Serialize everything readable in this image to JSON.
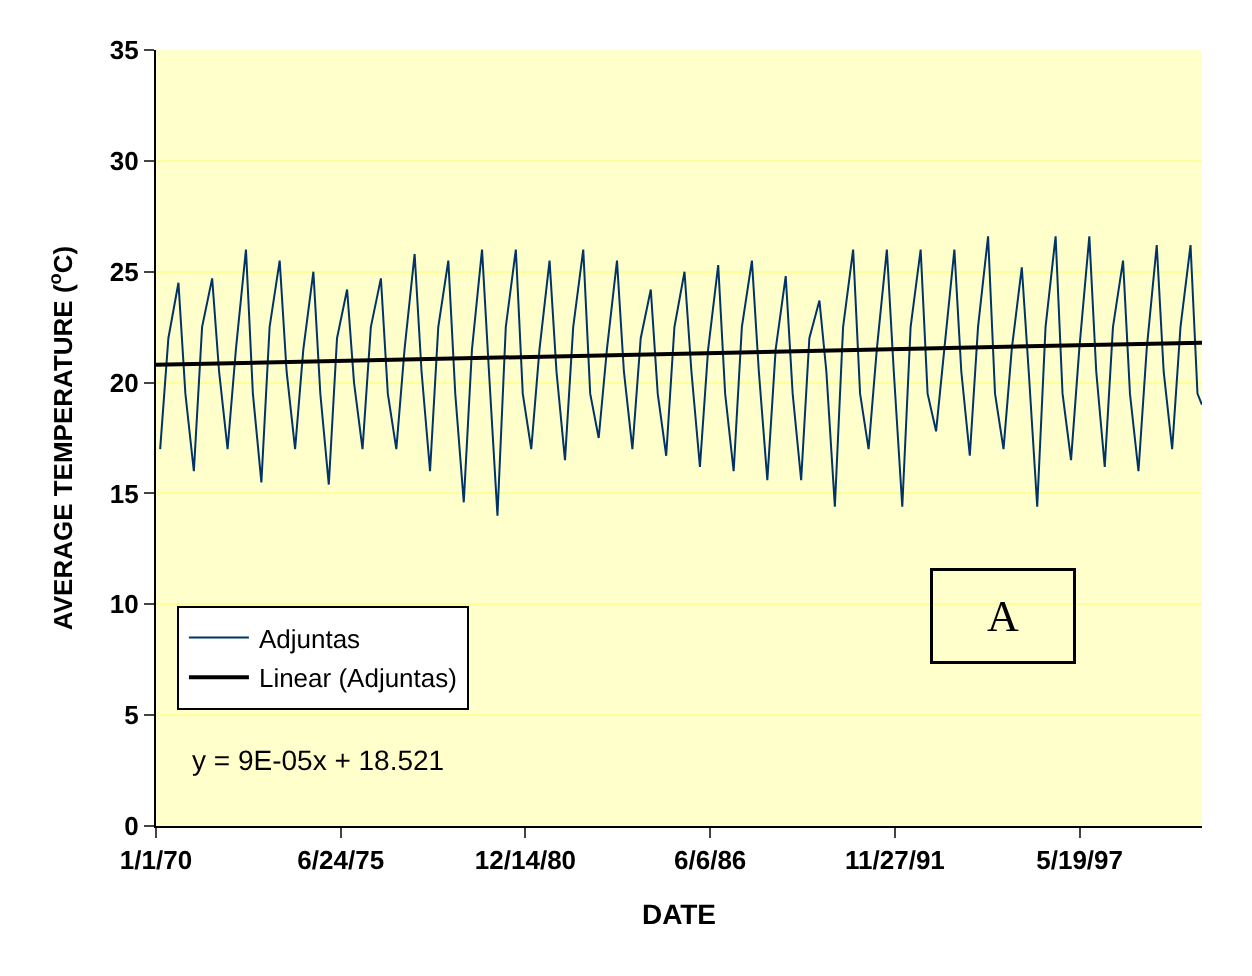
{
  "chart_data": {
    "type": "line",
    "xlabel": "DATE",
    "ylabel": "AVERAGE TEMPERATURE ($^{o}$C)",
    "xlim": [
      "1970-01-01",
      "2001-01-03"
    ],
    "xticks": [
      {
        "value": "1970-01-01",
        "label": "1/1/70"
      },
      {
        "value": "1975-06-24",
        "label": "6/24/75"
      },
      {
        "value": "1980-12-14",
        "label": "12/14/80"
      },
      {
        "value": "1986-06-06",
        "label": "6/6/86"
      },
      {
        "value": "1991-11-27",
        "label": "11/27/91"
      },
      {
        "value": "1997-05-19",
        "label": "5/19/97"
      }
    ],
    "ylim": [
      0,
      35
    ],
    "yticks": [
      0,
      5,
      10,
      15,
      20,
      25,
      30,
      35
    ],
    "grid": "y",
    "legend": "bottom left",
    "series": [
      {
        "name": "Adjuntas",
        "color": "#003366",
        "x": [
          "1970-02-15",
          "1970-05-15",
          "1970-09-01",
          "1970-11-15",
          "1971-02-15",
          "1971-05-15",
          "1971-09-01",
          "1971-11-15",
          "1972-02-15",
          "1972-05-15",
          "1972-09-01",
          "1972-11-15",
          "1973-02-15",
          "1973-05-15",
          "1973-09-01",
          "1973-11-15",
          "1974-02-15",
          "1974-05-15",
          "1974-09-01",
          "1974-11-15",
          "1975-02-15",
          "1975-05-15",
          "1975-09-01",
          "1975-11-15",
          "1976-02-15",
          "1976-05-15",
          "1976-09-01",
          "1976-11-15",
          "1977-02-15",
          "1977-05-15",
          "1977-09-01",
          "1977-11-15",
          "1978-02-15",
          "1978-05-15",
          "1978-09-01",
          "1978-11-15",
          "1979-02-15",
          "1979-05-15",
          "1979-09-01",
          "1979-11-15",
          "1980-02-15",
          "1980-05-15",
          "1980-09-01",
          "1980-11-15",
          "1981-02-15",
          "1981-05-15",
          "1981-09-01",
          "1981-11-15",
          "1982-02-15",
          "1982-05-15",
          "1982-09-01",
          "1982-11-15",
          "1983-02-15",
          "1983-05-15",
          "1983-09-01",
          "1983-11-15",
          "1984-02-15",
          "1984-05-15",
          "1984-09-01",
          "1984-11-15",
          "1985-02-15",
          "1985-05-15",
          "1985-09-01",
          "1985-11-15",
          "1986-02-15",
          "1986-05-15",
          "1986-09-01",
          "1986-11-15",
          "1987-02-15",
          "1987-05-15",
          "1987-09-01",
          "1987-11-15",
          "1988-02-15",
          "1988-05-15",
          "1988-09-01",
          "1988-11-15",
          "1989-02-15",
          "1989-05-15",
          "1989-09-01",
          "1989-11-15",
          "1990-02-15",
          "1990-05-15",
          "1990-09-01",
          "1990-11-15",
          "1991-02-15",
          "1991-05-15",
          "1991-09-01",
          "1991-11-15",
          "1992-02-15",
          "1992-05-15",
          "1992-09-01",
          "1992-11-15",
          "1993-02-15",
          "1993-05-15",
          "1993-09-01",
          "1993-11-15",
          "1994-02-15",
          "1994-05-15",
          "1994-09-01",
          "1994-11-15",
          "1995-02-15",
          "1995-05-15",
          "1995-09-01",
          "1995-11-15",
          "1996-02-15",
          "1996-05-15",
          "1996-09-01",
          "1996-11-15",
          "1997-02-15",
          "1997-05-15",
          "1997-09-01",
          "1997-11-15",
          "1998-02-15",
          "1998-05-15",
          "1998-09-01",
          "1998-11-15",
          "1999-02-15",
          "1999-05-15",
          "1999-09-01",
          "1999-11-15",
          "2000-02-15",
          "2000-05-15",
          "2000-09-01",
          "2000-11-15",
          "2001-01-02"
        ],
        "values": [
          17.0,
          22.0,
          24.5,
          19.5,
          16.0,
          22.5,
          24.7,
          20.5,
          17.0,
          21.5,
          26.0,
          19.5,
          15.5,
          22.5,
          25.5,
          20.5,
          17.0,
          21.5,
          25.0,
          19.5,
          15.4,
          22.0,
          24.2,
          20.0,
          17.0,
          22.5,
          24.7,
          19.5,
          17.0,
          21.5,
          25.8,
          20.5,
          16.0,
          22.5,
          25.5,
          19.5,
          14.6,
          21.5,
          26.0,
          20.5,
          14.0,
          22.5,
          26.0,
          19.5,
          17.0,
          21.5,
          25.5,
          20.5,
          16.5,
          22.5,
          26.0,
          19.5,
          17.5,
          21.5,
          25.5,
          20.5,
          17.0,
          22.0,
          24.2,
          19.5,
          16.7,
          22.5,
          25.0,
          20.5,
          16.2,
          21.5,
          25.3,
          19.5,
          16.0,
          22.5,
          25.5,
          20.5,
          15.6,
          21.5,
          24.8,
          19.5,
          15.6,
          22.0,
          23.7,
          20.5,
          14.4,
          22.5,
          26.0,
          19.5,
          17.0,
          21.5,
          26.0,
          20.5,
          14.4,
          22.5,
          26.0,
          19.5,
          17.8,
          21.5,
          26.0,
          20.5,
          16.7,
          22.5,
          26.6,
          19.5,
          17.0,
          21.5,
          25.2,
          20.5,
          14.4,
          22.5,
          26.6,
          19.5,
          16.5,
          21.5,
          26.6,
          20.5,
          16.2,
          22.5,
          25.5,
          19.5,
          16.0,
          21.5,
          26.2,
          20.5,
          17.0,
          22.5,
          26.2,
          19.5,
          19.0
        ]
      },
      {
        "name": "Linear (Adjuntas)",
        "color": "#000000",
        "x": [
          "1970-01-01",
          "2001-01-03"
        ],
        "values": [
          20.8,
          21.8
        ]
      }
    ],
    "annotations": [
      "y = 9E-05x + 18.521",
      "A"
    ]
  }
}
